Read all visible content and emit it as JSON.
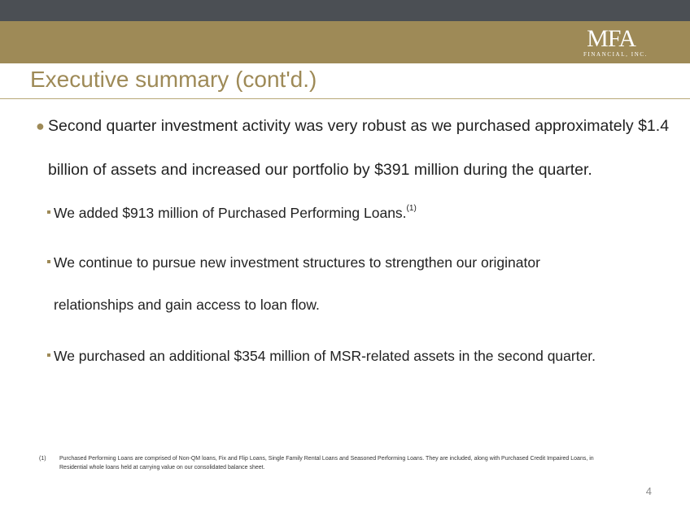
{
  "logo": {
    "main": "MFA",
    "sub": "FINANCIAL, INC."
  },
  "title": "Executive summary (cont'd.)",
  "bullet": {
    "text": "Second quarter investment activity was very robust as we purchased approximately $1.4 billion of assets and increased our portfolio by $391 million during the quarter."
  },
  "sub_bullets": [
    {
      "text": "We added $913 million of Purchased Performing Loans.",
      "sup": "(1)"
    },
    {
      "line1": "We continue to pursue new investment structures to strengthen our originator",
      "line2": "relationships and gain access to loan flow."
    },
    {
      "text": "We purchased an additional $354 million of MSR-related assets in the second quarter."
    }
  ],
  "footnote": {
    "marker": "(1)",
    "text": "Purchased Performing Loans are comprised of Non-QM loans, Fix and Flip Loans, Single Family Rental Loans and Seasoned Performing Loans.  They are included, along with Purchased Credit Impaired Loans, in Residential whole loans held at carrying value on our consolidated balance sheet."
  },
  "page_number": "4",
  "colors": {
    "accent": "#9e8a57",
    "top_bar": "#4b4f54",
    "text": "#222222"
  }
}
